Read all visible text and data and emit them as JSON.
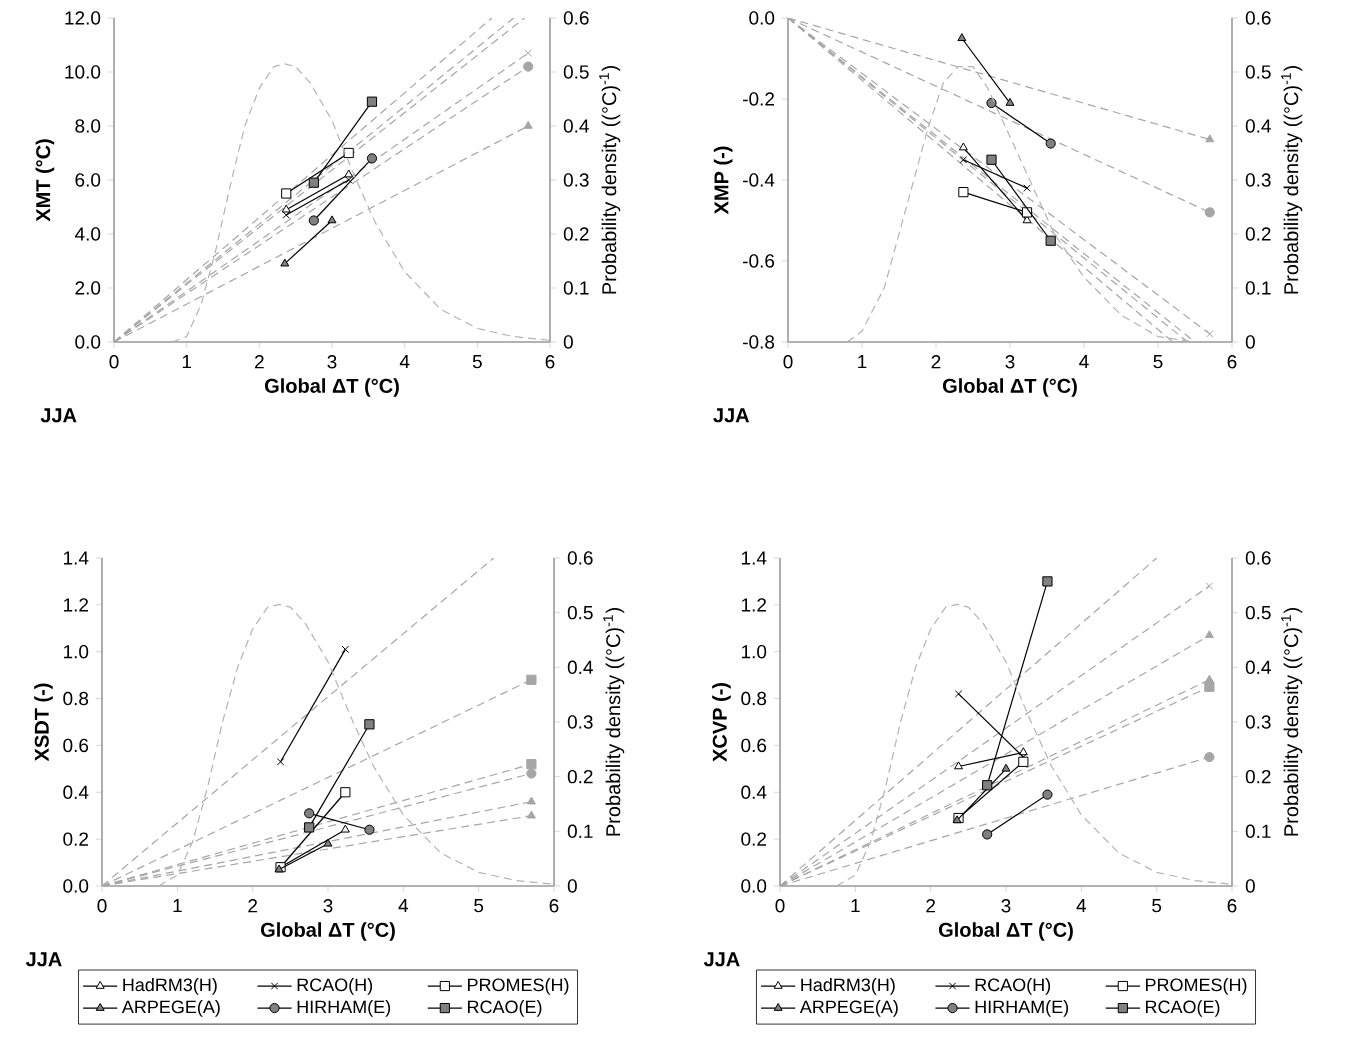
{
  "chart_data": [
    {
      "type": "line",
      "ylabel": "XMT (°C)",
      "xlabel": "Global ΔT (°C)",
      "y2label": "Probability density ((°C)$^{-1}$)",
      "annotations": [
        "JJA"
      ],
      "legend": false,
      "xlim": [
        0,
        6
      ],
      "xticks": [
        0,
        1,
        2,
        3,
        4,
        5,
        6
      ],
      "ylim": [
        0,
        12
      ],
      "yticks": [
        {
          "value": 0,
          "label": "0.0"
        },
        {
          "value": 2,
          "label": "2.0"
        },
        {
          "value": 4,
          "label": "4.0"
        },
        {
          "value": 6,
          "label": "6.0"
        },
        {
          "value": 8,
          "label": "8.0"
        },
        {
          "value": 10,
          "label": "10.0"
        },
        {
          "value": 12,
          "label": "12.0"
        }
      ],
      "y2lim": [
        0,
        0.6
      ],
      "y2ticks": [
        0,
        0.1,
        0.2,
        0.3,
        0.4,
        0.5,
        0.6
      ],
      "series": [
        {
          "line_style": "dashed",
          "color": "#a6a6a6",
          "marker": "none",
          "x": [
            0,
            5.65
          ],
          "values": [
            0,
            12
          ]
        },
        {
          "line_style": "dashed",
          "color": "#a6a6a6",
          "marker": "cross",
          "x": [
            0,
            5.7
          ],
          "values": [
            0,
            10.7
          ]
        },
        {
          "line_style": "dashed",
          "color": "#a6a6a6",
          "marker": "none",
          "x": [
            0,
            5.5
          ],
          "values": [
            0,
            12
          ]
        },
        {
          "line_style": "dashed",
          "color": "#a6a6a6",
          "marker": "triangle",
          "x": [
            0,
            5.7
          ],
          "values": [
            0,
            8.0
          ]
        },
        {
          "line_style": "dashed",
          "color": "#a6a6a6",
          "marker": "circle",
          "x": [
            0,
            5.7
          ],
          "values": [
            0,
            10.2
          ]
        },
        {
          "line_style": "dashed",
          "color": "#a6a6a6",
          "marker": "none",
          "x": [
            0,
            5.2
          ],
          "values": [
            0,
            12
          ]
        },
        {
          "axis": "y2",
          "line_style": "dashed",
          "color": "#b3b3b3",
          "marker": "none",
          "x": [
            0.8,
            1.0,
            1.2,
            1.4,
            1.6,
            1.8,
            2.0,
            2.2,
            2.35,
            2.5,
            2.7,
            3.0,
            3.3,
            3.6,
            4.0,
            4.5,
            5.0,
            5.5,
            6.0
          ],
          "values": [
            0,
            0.01,
            0.07,
            0.17,
            0.29,
            0.4,
            0.47,
            0.51,
            0.515,
            0.51,
            0.48,
            0.41,
            0.31,
            0.22,
            0.13,
            0.06,
            0.025,
            0.01,
            0.003
          ]
        },
        {
          "line_style": "solid",
          "color": "#ffffff",
          "marker": "triangle",
          "x": [
            2.37,
            3.23
          ],
          "values": [
            4.9,
            6.2
          ]
        },
        {
          "line_style": "solid",
          "color": "#000000",
          "marker": "cross",
          "x": [
            2.37,
            3.23
          ],
          "values": [
            4.7,
            6.0
          ]
        },
        {
          "line_style": "solid",
          "color": "#ffffff",
          "marker": "square",
          "x": [
            2.37,
            3.23
          ],
          "values": [
            5.5,
            7.0
          ]
        },
        {
          "line_style": "solid",
          "color": "#808080",
          "marker": "triangle",
          "x": [
            2.35,
            3.0
          ],
          "values": [
            2.9,
            4.5
          ]
        },
        {
          "line_style": "solid",
          "color": "#808080",
          "marker": "circle",
          "x": [
            2.75,
            3.55
          ],
          "values": [
            4.5,
            6.8
          ]
        },
        {
          "line_style": "solid",
          "color": "#808080",
          "marker": "square",
          "x": [
            2.75,
            3.55
          ],
          "values": [
            5.9,
            8.9
          ]
        }
      ]
    },
    {
      "type": "line",
      "ylabel": "XMP (-)",
      "xlabel": "Global ΔT (°C)",
      "y2label": "Probability density ((°C)$^{-1}$)",
      "annotations": [
        "JJA"
      ],
      "legend": false,
      "xlim": [
        0,
        6
      ],
      "xticks": [
        0,
        1,
        2,
        3,
        4,
        5,
        6
      ],
      "ylim": [
        -0.8,
        0
      ],
      "yticks": [
        -0.8,
        -0.6,
        -0.4,
        -0.2,
        {
          "value": 0,
          "label": "0.0"
        }
      ],
      "y2lim": [
        0,
        0.6
      ],
      "y2ticks": [
        0,
        0.1,
        0.2,
        0.3,
        0.4,
        0.5,
        0.6
      ],
      "series": [
        {
          "line_style": "dashed",
          "color": "#a6a6a6",
          "marker": "none",
          "x": [
            0,
            5.2
          ],
          "values": [
            0,
            -0.8
          ]
        },
        {
          "line_style": "dashed",
          "color": "#a6a6a6",
          "marker": "cross",
          "x": [
            0,
            5.7
          ],
          "values": [
            0,
            -0.78
          ]
        },
        {
          "line_style": "dashed",
          "color": "#a6a6a6",
          "marker": "none",
          "x": [
            0,
            5.5
          ],
          "values": [
            0,
            -0.8
          ]
        },
        {
          "line_style": "dashed",
          "color": "#a6a6a6",
          "marker": "triangle",
          "x": [
            0,
            5.7
          ],
          "values": [
            0,
            -0.3
          ]
        },
        {
          "line_style": "dashed",
          "color": "#a6a6a6",
          "marker": "circle",
          "x": [
            0,
            5.7
          ],
          "values": [
            0,
            -0.48
          ]
        },
        {
          "line_style": "dashed",
          "color": "#a6a6a6",
          "marker": "none",
          "x": [
            0,
            5.4
          ],
          "values": [
            0,
            -0.8
          ]
        },
        {
          "axis": "y2",
          "line_style": "dashed",
          "color": "#b3b3b3",
          "marker": "none",
          "x": [
            0.8,
            1.0,
            1.3,
            1.6,
            1.9,
            2.1,
            2.3,
            2.5,
            2.7,
            3.0,
            3.3,
            3.6,
            4.0,
            4.5,
            5.0,
            5.5
          ],
          "values": [
            0,
            0.02,
            0.1,
            0.25,
            0.4,
            0.48,
            0.51,
            0.51,
            0.47,
            0.38,
            0.29,
            0.2,
            0.12,
            0.05,
            0.01,
            0
          ]
        },
        {
          "line_style": "solid",
          "color": "#ffffff",
          "marker": "triangle",
          "x": [
            2.37,
            3.23
          ],
          "values": [
            -0.32,
            -0.5
          ]
        },
        {
          "line_style": "solid",
          "color": "#000000",
          "marker": "cross",
          "x": [
            2.37,
            3.23
          ],
          "values": [
            -0.35,
            -0.42
          ]
        },
        {
          "line_style": "solid",
          "color": "#ffffff",
          "marker": "square",
          "x": [
            2.37,
            3.23
          ],
          "values": [
            -0.43,
            -0.48
          ]
        },
        {
          "line_style": "solid",
          "color": "#808080",
          "marker": "triangle",
          "x": [
            2.35,
            3.0
          ],
          "values": [
            -0.05,
            -0.21
          ]
        },
        {
          "line_style": "solid",
          "color": "#808080",
          "marker": "circle",
          "x": [
            2.75,
            3.55
          ],
          "values": [
            -0.21,
            -0.31
          ]
        },
        {
          "line_style": "solid",
          "color": "#808080",
          "marker": "square",
          "x": [
            2.75,
            3.55
          ],
          "values": [
            -0.35,
            -0.55
          ]
        }
      ]
    },
    {
      "type": "line",
      "ylabel": "XSDT (-)",
      "xlabel": "Global ΔT (°C)",
      "y2label": "Probability density ((°C)$^{-1}$)",
      "annotations": [
        "JJA"
      ],
      "legend": "bottom",
      "xlim": [
        0,
        6
      ],
      "xticks": [
        0,
        1,
        2,
        3,
        4,
        5,
        6
      ],
      "ylim": [
        0,
        1.4
      ],
      "yticks": [
        {
          "value": 0,
          "label": "0.0"
        },
        0.2,
        0.4,
        0.6,
        0.8,
        {
          "value": 1,
          "label": "1.0"
        },
        1.2,
        1.4
      ],
      "y2lim": [
        0,
        0.6
      ],
      "y2ticks": [
        0,
        0.1,
        0.2,
        0.3,
        0.4,
        0.5,
        0.6
      ],
      "series": [
        {
          "line_style": "dashed",
          "color": "#a6a6a6",
          "marker": "triangle",
          "x": [
            0,
            5.7
          ],
          "values": [
            0,
            0.36
          ]
        },
        {
          "line_style": "dashed",
          "color": "#a6a6a6",
          "marker": "none",
          "x": [
            0,
            5.2
          ],
          "values": [
            0,
            1.4
          ]
        },
        {
          "line_style": "dashed",
          "color": "#a6a6a6",
          "marker": "square",
          "x": [
            0,
            5.7
          ],
          "values": [
            0,
            0.52
          ]
        },
        {
          "line_style": "dashed",
          "color": "#a6a6a6",
          "marker": "triangle",
          "x": [
            0,
            5.7
          ],
          "values": [
            0,
            0.3
          ]
        },
        {
          "line_style": "dashed",
          "color": "#a6a6a6",
          "marker": "circle",
          "x": [
            0,
            5.7
          ],
          "values": [
            0,
            0.48
          ]
        },
        {
          "line_style": "dashed",
          "color": "#a6a6a6",
          "marker": "square",
          "x": [
            0,
            5.7
          ],
          "values": [
            0,
            0.88
          ]
        },
        {
          "axis": "y2",
          "line_style": "dashed",
          "color": "#b3b3b3",
          "marker": "none",
          "x": [
            0.75,
            1.0,
            1.2,
            1.4,
            1.6,
            1.8,
            2.0,
            2.2,
            2.35,
            2.5,
            2.7,
            3.0,
            3.3,
            3.6,
            4.0,
            4.5,
            5.0,
            5.5,
            6.0
          ],
          "values": [
            0,
            0.02,
            0.08,
            0.18,
            0.3,
            0.4,
            0.47,
            0.51,
            0.515,
            0.51,
            0.48,
            0.41,
            0.31,
            0.22,
            0.13,
            0.06,
            0.025,
            0.01,
            0.003
          ]
        },
        {
          "name": "HadRM3(H)",
          "line_style": "solid",
          "color": "#ffffff",
          "marker": "triangle",
          "x": [
            2.37,
            3.23
          ],
          "values": [
            0.08,
            0.24
          ]
        },
        {
          "name": "RCAO(H)",
          "line_style": "solid",
          "color": "#000000",
          "marker": "cross",
          "x": [
            2.37,
            3.23
          ],
          "values": [
            0.53,
            1.01
          ]
        },
        {
          "name": "PROMES(H)",
          "line_style": "solid",
          "color": "#ffffff",
          "marker": "square",
          "x": [
            2.37,
            3.23
          ],
          "values": [
            0.08,
            0.4
          ]
        },
        {
          "name": "ARPEGE(A)",
          "line_style": "solid",
          "color": "#808080",
          "marker": "triangle",
          "x": [
            2.35,
            3.0
          ],
          "values": [
            0.07,
            0.18
          ]
        },
        {
          "name": "HIRHAM(E)",
          "line_style": "solid",
          "color": "#808080",
          "marker": "circle",
          "x": [
            2.75,
            3.55
          ],
          "values": [
            0.31,
            0.24
          ]
        },
        {
          "name": "RCAO(E)",
          "line_style": "solid",
          "color": "#808080",
          "marker": "square",
          "x": [
            2.75,
            3.55
          ],
          "values": [
            0.25,
            0.69
          ]
        }
      ]
    },
    {
      "type": "line",
      "ylabel": "XCVP (-)",
      "xlabel": "Global ΔT (°C)",
      "y2label": "Probability density ((°C)$^{-1}$)",
      "annotations": [
        "JJA"
      ],
      "legend": "bottom",
      "xlim": [
        0,
        6
      ],
      "xticks": [
        0,
        1,
        2,
        3,
        4,
        5,
        6
      ],
      "ylim": [
        0,
        1.4
      ],
      "yticks": [
        {
          "value": 0,
          "label": "0.0"
        },
        0.2,
        0.4,
        0.6,
        0.8,
        {
          "value": 1,
          "label": "1.0"
        },
        1.2,
        1.4
      ],
      "y2lim": [
        0,
        0.6
      ],
      "y2ticks": [
        0,
        0.1,
        0.2,
        0.3,
        0.4,
        0.5,
        0.6
      ],
      "series": [
        {
          "line_style": "dashed",
          "color": "#a6a6a6",
          "marker": "triangle",
          "x": [
            0,
            5.7
          ],
          "values": [
            0,
            1.07
          ]
        },
        {
          "line_style": "dashed",
          "color": "#a6a6a6",
          "marker": "cross",
          "x": [
            0,
            5.7
          ],
          "values": [
            0,
            1.28
          ]
        },
        {
          "line_style": "dashed",
          "color": "#a6a6a6",
          "marker": "none",
          "x": [
            0,
            5.0
          ],
          "values": [
            0,
            1.4
          ]
        },
        {
          "line_style": "dashed",
          "color": "#a6a6a6",
          "marker": "triangle",
          "x": [
            0,
            5.7
          ],
          "values": [
            0,
            0.88
          ]
        },
        {
          "line_style": "dashed",
          "color": "#a6a6a6",
          "marker": "circle",
          "x": [
            0,
            5.7
          ],
          "values": [
            0,
            0.55
          ]
        },
        {
          "line_style": "dashed",
          "color": "#a6a6a6",
          "marker": "square",
          "x": [
            0,
            5.7
          ],
          "values": [
            0,
            0.85
          ]
        },
        {
          "axis": "y2",
          "line_style": "dashed",
          "color": "#b3b3b3",
          "marker": "none",
          "x": [
            0.75,
            1.0,
            1.2,
            1.4,
            1.6,
            1.8,
            2.0,
            2.2,
            2.35,
            2.5,
            2.7,
            3.0,
            3.3,
            3.6,
            4.0,
            4.5,
            5.0,
            5.5,
            6.0
          ],
          "values": [
            0,
            0.02,
            0.08,
            0.18,
            0.3,
            0.4,
            0.47,
            0.51,
            0.515,
            0.51,
            0.48,
            0.41,
            0.31,
            0.22,
            0.13,
            0.06,
            0.025,
            0.01,
            0.003
          ]
        },
        {
          "name": "HadRM3(H)",
          "line_style": "solid",
          "color": "#ffffff",
          "marker": "triangle",
          "x": [
            2.37,
            3.23
          ],
          "values": [
            0.51,
            0.57
          ]
        },
        {
          "name": "RCAO(H)",
          "line_style": "solid",
          "color": "#000000",
          "marker": "cross",
          "x": [
            2.37,
            3.23
          ],
          "values": [
            0.82,
            0.55
          ]
        },
        {
          "name": "PROMES(H)",
          "line_style": "solid",
          "color": "#ffffff",
          "marker": "square",
          "x": [
            2.37,
            3.23
          ],
          "values": [
            0.29,
            0.53
          ]
        },
        {
          "name": "ARPEGE(A)",
          "line_style": "solid",
          "color": "#808080",
          "marker": "triangle",
          "x": [
            2.35,
            3.0
          ],
          "values": [
            0.28,
            0.5
          ]
        },
        {
          "name": "HIRHAM(E)",
          "line_style": "solid",
          "color": "#808080",
          "marker": "circle",
          "x": [
            2.75,
            3.55
          ],
          "values": [
            0.22,
            0.39
          ]
        },
        {
          "name": "RCAO(E)",
          "line_style": "solid",
          "color": "#808080",
          "marker": "square",
          "x": [
            2.75,
            3.55
          ],
          "values": [
            0.43,
            1.3
          ]
        }
      ]
    }
  ]
}
